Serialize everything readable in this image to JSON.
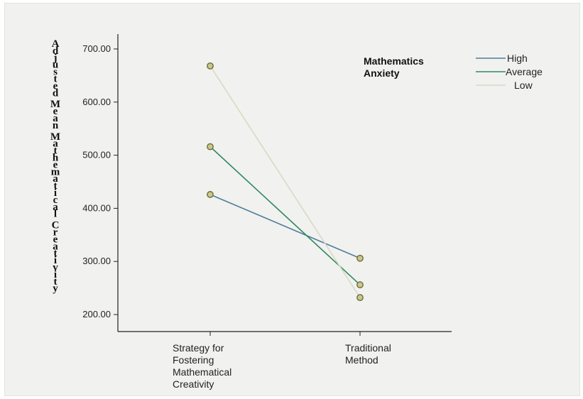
{
  "chart_data": {
    "type": "line",
    "ylabel": "Adjusted Mean Mathematical Creativity",
    "xlabel": "",
    "categories": [
      "Strategy for\nFostering\nMathematical\nCreativity",
      "Traditional\nMethod"
    ],
    "y_ticks": [
      "200.00",
      "300.00",
      "400.00",
      "500.00",
      "600.00",
      "700.00"
    ],
    "ylim": [
      168,
      728
    ],
    "legend_title": "Mathematics\nAnxiety",
    "legend_position": "top-right",
    "series": [
      {
        "name": "High",
        "color": "#4f7e9c",
        "values": [
          426,
          306
        ]
      },
      {
        "name": "Average",
        "color": "#2f8a62",
        "values": [
          516,
          256
        ]
      },
      {
        "name": "Low",
        "color": "#d9d9c6",
        "values": [
          668,
          232
        ]
      }
    ],
    "marker_color": "#c9c78a",
    "grid": false
  }
}
